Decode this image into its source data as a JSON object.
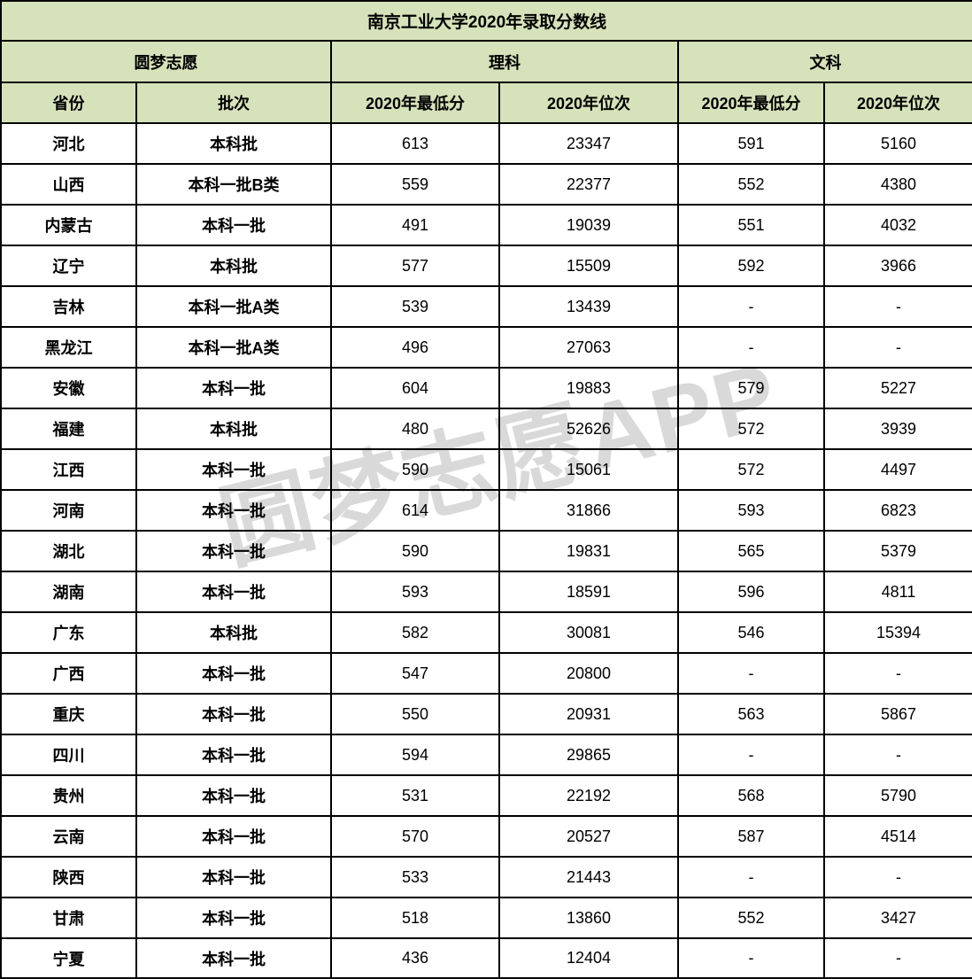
{
  "chart_data": {
    "type": "table",
    "title": "南京工业大学2020年录取分数线",
    "header_groups": {
      "brand": "圆梦志愿",
      "science": "理科",
      "arts": "文科"
    },
    "columns": [
      "省份",
      "批次",
      "2020年最低分",
      "2020年位次",
      "2020年最低分",
      "2020年位次"
    ],
    "rows": [
      [
        "河北",
        "本科批",
        "613",
        "23347",
        "591",
        "5160"
      ],
      [
        "山西",
        "本科一批B类",
        "559",
        "22377",
        "552",
        "4380"
      ],
      [
        "内蒙古",
        "本科一批",
        "491",
        "19039",
        "551",
        "4032"
      ],
      [
        "辽宁",
        "本科批",
        "577",
        "15509",
        "592",
        "3966"
      ],
      [
        "吉林",
        "本科一批A类",
        "539",
        "13439",
        "-",
        "-"
      ],
      [
        "黑龙江",
        "本科一批A类",
        "496",
        "27063",
        "-",
        "-"
      ],
      [
        "安徽",
        "本科一批",
        "604",
        "19883",
        "579",
        "5227"
      ],
      [
        "福建",
        "本科批",
        "480",
        "52626",
        "572",
        "3939"
      ],
      [
        "江西",
        "本科一批",
        "590",
        "15061",
        "572",
        "4497"
      ],
      [
        "河南",
        "本科一批",
        "614",
        "31866",
        "593",
        "6823"
      ],
      [
        "湖北",
        "本科一批",
        "590",
        "19831",
        "565",
        "5379"
      ],
      [
        "湖南",
        "本科一批",
        "593",
        "18591",
        "596",
        "4811"
      ],
      [
        "广东",
        "本科批",
        "582",
        "30081",
        "546",
        "15394"
      ],
      [
        "广西",
        "本科一批",
        "547",
        "20800",
        "-",
        "-"
      ],
      [
        "重庆",
        "本科一批",
        "550",
        "20931",
        "563",
        "5867"
      ],
      [
        "四川",
        "本科一批",
        "594",
        "29865",
        "-",
        "-"
      ],
      [
        "贵州",
        "本科一批",
        "531",
        "22192",
        "568",
        "5790"
      ],
      [
        "云南",
        "本科一批",
        "570",
        "20527",
        "587",
        "4514"
      ],
      [
        "陕西",
        "本科一批",
        "533",
        "21443",
        "-",
        "-"
      ],
      [
        "甘肃",
        "本科一批",
        "518",
        "13860",
        "552",
        "3427"
      ],
      [
        "宁夏",
        "本科一批",
        "436",
        "12404",
        "-",
        "-"
      ]
    ]
  },
  "watermark": {
    "text": "圆梦志愿APP"
  },
  "colors": {
    "header_bg": "#d6e2ba",
    "border": "#000000",
    "watermark": "#d9d9d9",
    "text": "#000000"
  }
}
